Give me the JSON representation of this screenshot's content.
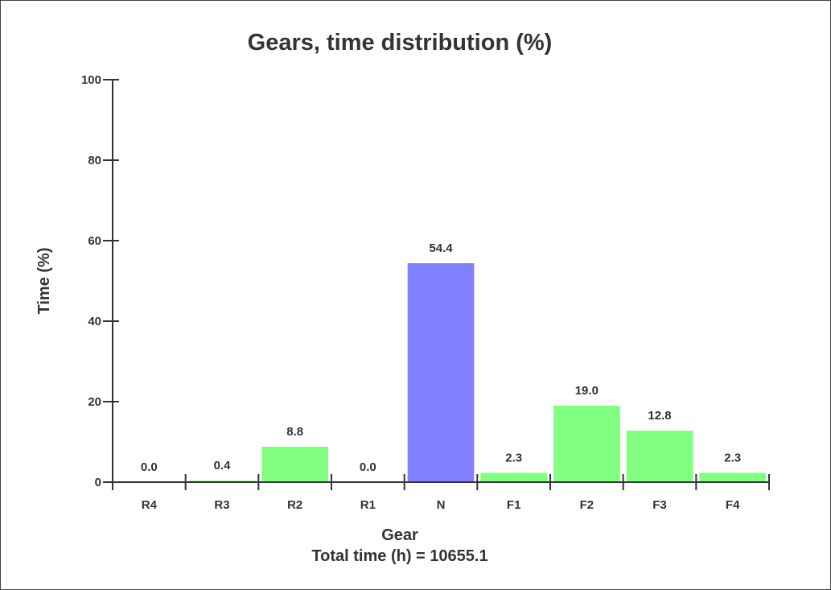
{
  "chart_data": {
    "type": "bar",
    "title": "Gears, time distribution (%)",
    "xlabel": "Gear",
    "ylabel": "Time (%)",
    "footer": "Total time (h) = 10655.1",
    "ylim": [
      0,
      100
    ],
    "yticks": [
      0,
      20,
      40,
      60,
      80,
      100
    ],
    "categories": [
      "R4",
      "R3",
      "R2",
      "R1",
      "N",
      "F1",
      "F2",
      "F3",
      "F4"
    ],
    "values": [
      0.0,
      0.4,
      8.8,
      0.0,
      54.4,
      2.3,
      19.0,
      12.8,
      2.3
    ],
    "value_labels": [
      "0.0",
      "0.4",
      "8.8",
      "0.0",
      "54.4",
      "2.3",
      "19.0",
      "12.8",
      "2.3"
    ],
    "colors": [
      "#80ff80",
      "#80ff80",
      "#80ff80",
      "#80ff80",
      "#8080ff",
      "#80ff80",
      "#80ff80",
      "#80ff80",
      "#80ff80"
    ],
    "grid": false,
    "legend": "none"
  }
}
